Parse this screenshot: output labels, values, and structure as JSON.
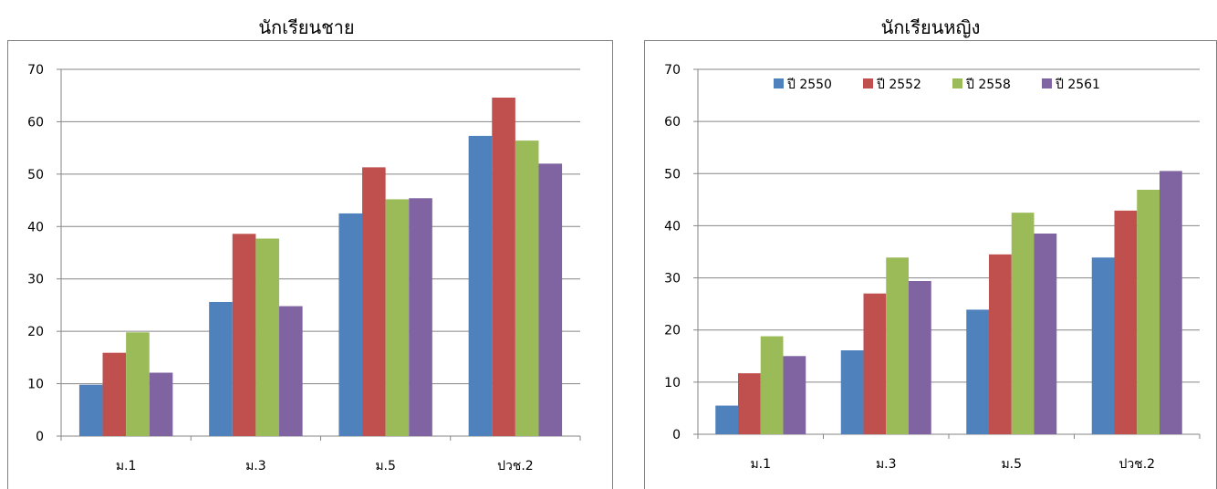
{
  "chart_data": [
    {
      "type": "bar",
      "title": "นักเรียนชาย",
      "categories": [
        "ม.1",
        "ม.3",
        "ม.5",
        "ปวช.2"
      ],
      "ylim": [
        0,
        70
      ],
      "yticks": [
        "0",
        "10",
        "20",
        "30",
        "40",
        "50",
        "60",
        "70"
      ],
      "grid": true,
      "legend": "none",
      "series": [
        {
          "name": "ปี 2550",
          "color": "#4F81BD",
          "values": [
            9.8,
            25.6,
            42.5,
            57.3
          ]
        },
        {
          "name": "ปี 2552",
          "color": "#C0504D",
          "values": [
            15.9,
            38.6,
            51.3,
            64.6
          ]
        },
        {
          "name": "ปี 2558",
          "color": "#9BBB59",
          "values": [
            19.8,
            37.7,
            45.2,
            56.4
          ]
        },
        {
          "name": "ปี 2561",
          "color": "#8064A2",
          "values": [
            12.1,
            24.8,
            45.4,
            52.0
          ]
        }
      ]
    },
    {
      "type": "bar",
      "title": "นักเรียนหญิง",
      "categories": [
        "ม.1",
        "ม.3",
        "ม.5",
        "ปวช.2"
      ],
      "ylim": [
        0,
        70
      ],
      "yticks": [
        "0",
        "10",
        "20",
        "30",
        "40",
        "50",
        "60",
        "70"
      ],
      "grid": true,
      "legend": "top",
      "series": [
        {
          "name": "ปี 2550",
          "color": "#4F81BD",
          "values": [
            5.5,
            16.1,
            23.9,
            33.9
          ]
        },
        {
          "name": "ปี 2552",
          "color": "#C0504D",
          "values": [
            11.7,
            27.0,
            34.5,
            42.9
          ]
        },
        {
          "name": "ปี 2558",
          "color": "#9BBB59",
          "values": [
            18.8,
            33.9,
            42.5,
            46.9
          ]
        },
        {
          "name": "ปี 2561",
          "color": "#8064A2",
          "values": [
            15.0,
            29.4,
            38.5,
            50.5
          ]
        }
      ]
    }
  ]
}
